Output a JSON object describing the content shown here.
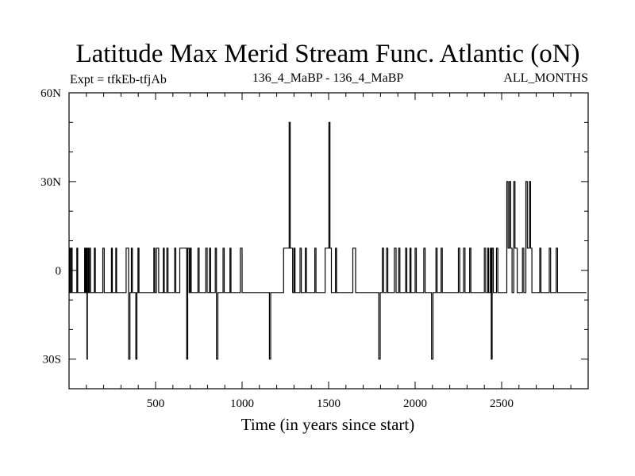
{
  "header": {
    "title": "Latitude Max Merid Stream Func. Atlantic (oN)",
    "expt": "Expt = tfkEb-tfjAb",
    "run": "136_4_MaBP - 136_4_MaBP",
    "months": "ALL_MONTHS"
  },
  "chart_data": {
    "type": "line",
    "title": "Latitude Max Merid Stream Func. Atlantic (oN)",
    "xlabel": "Time (in years since start)",
    "ylabel": "",
    "xlim": [
      0,
      3000
    ],
    "ylim": [
      -40,
      60
    ],
    "grid": false,
    "x_ticks": [
      500,
      1000,
      1500,
      2000,
      2500
    ],
    "x_tick_labels": [
      "500",
      "1000",
      "1500",
      "2000",
      "2500"
    ],
    "y_ticks": [
      -30,
      0,
      30,
      60
    ],
    "y_tick_labels": [
      "30S",
      "0",
      "30N",
      "60N"
    ],
    "series": [
      {
        "points": [
          [
            0,
            -7.5
          ],
          [
            3,
            7.5
          ],
          [
            6,
            -7.5
          ],
          [
            12,
            7.5
          ],
          [
            18,
            -7.5
          ],
          [
            45,
            7.5
          ],
          [
            50,
            -7.5
          ],
          [
            90,
            7.5
          ],
          [
            95,
            -7.5
          ],
          [
            100,
            7.5
          ],
          [
            103,
            -30
          ],
          [
            106,
            7.5
          ],
          [
            112,
            -7.5
          ],
          [
            118,
            7.5
          ],
          [
            124,
            -7.5
          ],
          [
            140,
            -7.5
          ],
          [
            146,
            7.5
          ],
          [
            152,
            -7.5
          ],
          [
            195,
            7.5
          ],
          [
            198,
            7.5
          ],
          [
            203,
            -7.5
          ],
          [
            240,
            -7.5
          ],
          [
            245,
            7.5
          ],
          [
            250,
            -7.5
          ],
          [
            270,
            7.5
          ],
          [
            275,
            -7.5
          ],
          [
            330,
            7.5
          ],
          [
            338,
            7.5
          ],
          [
            344,
            -30
          ],
          [
            352,
            -7.5
          ],
          [
            360,
            7.5
          ],
          [
            366,
            -7.5
          ],
          [
            380,
            -7.5
          ],
          [
            386,
            -30
          ],
          [
            392,
            -7.5
          ],
          [
            398,
            7.5
          ],
          [
            404,
            -7.5
          ],
          [
            430,
            -7.5
          ],
          [
            490,
            7.5
          ],
          [
            496,
            -7.5
          ],
          [
            505,
            7.5
          ],
          [
            512,
            7.5
          ],
          [
            518,
            -7.5
          ],
          [
            530,
            -7.5
          ],
          [
            545,
            7.5
          ],
          [
            550,
            -7.5
          ],
          [
            565,
            7.5
          ],
          [
            572,
            -7.5
          ],
          [
            610,
            7.5
          ],
          [
            617,
            -7.5
          ],
          [
            640,
            7.5
          ],
          [
            648,
            7.5
          ],
          [
            656,
            7.5
          ],
          [
            664,
            7.5
          ],
          [
            672,
            7.5
          ],
          [
            680,
            -30
          ],
          [
            686,
            7.5
          ],
          [
            694,
            -7.5
          ],
          [
            700,
            7.5
          ],
          [
            706,
            -7.5
          ],
          [
            745,
            7.5
          ],
          [
            752,
            -7.5
          ],
          [
            780,
            -7.5
          ],
          [
            790,
            7.5
          ],
          [
            798,
            -7.5
          ],
          [
            812,
            7.5
          ],
          [
            818,
            -7.5
          ],
          [
            845,
            7.5
          ],
          [
            852,
            -30
          ],
          [
            860,
            -7.5
          ],
          [
            870,
            -7.5
          ],
          [
            890,
            7.5
          ],
          [
            897,
            -7.5
          ],
          [
            930,
            7.5
          ],
          [
            936,
            -7.5
          ],
          [
            990,
            7.5
          ],
          [
            1000,
            -7.5
          ],
          [
            1050,
            -7.5
          ],
          [
            1140,
            -7.5
          ],
          [
            1158,
            -30
          ],
          [
            1165,
            -7.5
          ],
          [
            1240,
            7.5
          ],
          [
            1248,
            7.5
          ],
          [
            1256,
            7.5
          ],
          [
            1265,
            7.5
          ],
          [
            1272,
            50
          ],
          [
            1278,
            7.5
          ],
          [
            1285,
            7.5
          ],
          [
            1292,
            -7.5
          ],
          [
            1300,
            7.5
          ],
          [
            1306,
            -7.5
          ],
          [
            1320,
            -7.5
          ],
          [
            1335,
            7.5
          ],
          [
            1342,
            -7.5
          ],
          [
            1365,
            7.5
          ],
          [
            1372,
            -7.5
          ],
          [
            1395,
            -7.5
          ],
          [
            1420,
            7.5
          ],
          [
            1427,
            -7.5
          ],
          [
            1460,
            -7.5
          ],
          [
            1480,
            7.5
          ],
          [
            1490,
            7.5
          ],
          [
            1502,
            50
          ],
          [
            1508,
            7.5
          ],
          [
            1516,
            -7.5
          ],
          [
            1540,
            7.5
          ],
          [
            1546,
            -7.5
          ],
          [
            1580,
            -7.5
          ],
          [
            1640,
            7.5
          ],
          [
            1648,
            7.5
          ],
          [
            1656,
            -7.5
          ],
          [
            1670,
            -7.5
          ],
          [
            1690,
            -7.5
          ],
          [
            1715,
            -7.5
          ],
          [
            1780,
            -7.5
          ],
          [
            1790,
            -30
          ],
          [
            1798,
            -7.5
          ],
          [
            1810,
            7.5
          ],
          [
            1818,
            -7.5
          ],
          [
            1835,
            7.5
          ],
          [
            1842,
            -7.5
          ],
          [
            1880,
            7.5
          ],
          [
            1890,
            -7.5
          ],
          [
            1905,
            7.5
          ],
          [
            1912,
            -7.5
          ],
          [
            1945,
            7.5
          ],
          [
            1952,
            -7.5
          ],
          [
            1970,
            7.5
          ],
          [
            1976,
            -7.5
          ],
          [
            2000,
            7.5
          ],
          [
            2007,
            -7.5
          ],
          [
            2050,
            7.5
          ],
          [
            2058,
            -7.5
          ],
          [
            2095,
            -30
          ],
          [
            2103,
            -7.5
          ],
          [
            2120,
            7.5
          ],
          [
            2127,
            -7.5
          ],
          [
            2150,
            7.5
          ],
          [
            2157,
            -7.5
          ],
          [
            2180,
            -7.5
          ],
          [
            2205,
            -7.5
          ],
          [
            2250,
            7.5
          ],
          [
            2258,
            -7.5
          ],
          [
            2280,
            7.5
          ],
          [
            2288,
            -7.5
          ],
          [
            2300,
            -7.5
          ],
          [
            2315,
            7.5
          ],
          [
            2322,
            -7.5
          ],
          [
            2345,
            -7.5
          ],
          [
            2400,
            7.5
          ],
          [
            2408,
            -7.5
          ],
          [
            2420,
            7.5
          ],
          [
            2425,
            -7.5
          ],
          [
            2435,
            7.5
          ],
          [
            2440,
            -30
          ],
          [
            2445,
            7.5
          ],
          [
            2452,
            -7.5
          ],
          [
            2460,
            -7.5
          ],
          [
            2470,
            7.5
          ],
          [
            2478,
            -7.5
          ],
          [
            2490,
            -7.5
          ],
          [
            2500,
            -7.5
          ],
          [
            2530,
            30
          ],
          [
            2537,
            7.5
          ],
          [
            2545,
            30
          ],
          [
            2552,
            7.5
          ],
          [
            2560,
            -7.5
          ],
          [
            2570,
            30
          ],
          [
            2577,
            7.5
          ],
          [
            2590,
            -7.5
          ],
          [
            2600,
            -7.5
          ],
          [
            2620,
            7.5
          ],
          [
            2628,
            -7.5
          ],
          [
            2640,
            30
          ],
          [
            2648,
            7.5
          ],
          [
            2660,
            30
          ],
          [
            2667,
            7.5
          ],
          [
            2675,
            -7.5
          ],
          [
            2690,
            -7.5
          ],
          [
            2720,
            7.5
          ],
          [
            2727,
            -7.5
          ],
          [
            2760,
            -7.5
          ],
          [
            2775,
            7.5
          ],
          [
            2783,
            -7.5
          ],
          [
            2800,
            -7.5
          ],
          [
            2815,
            7.5
          ],
          [
            2823,
            -7.5
          ]
        ]
      }
    ]
  }
}
